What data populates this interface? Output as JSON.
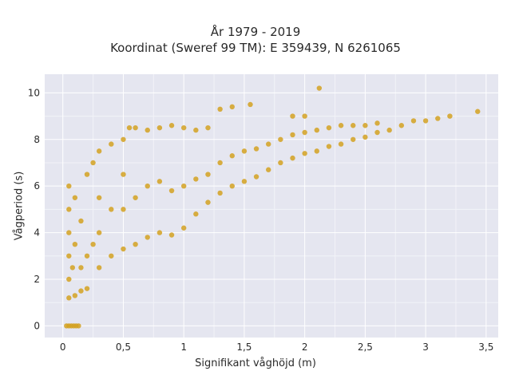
{
  "chart_data": {
    "type": "scatter",
    "title_line1": "År 1979 - 2019",
    "title_line2": "Koordinat (Sweref 99 TM): E 359439, N 6261065",
    "xlabel": "Signifikant våghöjd (m)",
    "ylabel": "Vågperiod (s)",
    "xlim": [
      -0.15,
      3.6
    ],
    "ylim": [
      -0.5,
      10.8
    ],
    "x_ticks": [
      0,
      0.5,
      1,
      1.5,
      2,
      2.5,
      3,
      3.5
    ],
    "x_tick_labels": [
      "0",
      "0,5",
      "1",
      "1,5",
      "2",
      "2,5",
      "3",
      "3,5"
    ],
    "y_ticks": [
      0,
      2,
      4,
      6,
      8,
      10
    ],
    "y_tick_labels": [
      "0",
      "2",
      "4",
      "6",
      "8",
      "10"
    ],
    "grid": true,
    "marker_color": "#d4a121",
    "plot_bg": "#e5e6f0",
    "series": [
      {
        "points": [
          [
            0.03,
            0.0
          ],
          [
            0.05,
            0.0
          ],
          [
            0.07,
            0.0
          ],
          [
            0.09,
            0.0
          ],
          [
            0.11,
            0.0
          ],
          [
            0.13,
            0.0
          ],
          [
            0.05,
            1.2
          ],
          [
            0.1,
            1.3
          ],
          [
            0.15,
            1.5
          ],
          [
            0.2,
            1.6
          ],
          [
            0.05,
            2.0
          ],
          [
            0.08,
            2.5
          ],
          [
            0.05,
            3.0
          ],
          [
            0.05,
            4.0
          ],
          [
            0.05,
            5.0
          ],
          [
            0.05,
            6.0
          ],
          [
            0.1,
            3.5
          ],
          [
            0.1,
            5.5
          ],
          [
            0.15,
            2.5
          ],
          [
            0.15,
            4.5
          ],
          [
            0.2,
            3.0
          ],
          [
            0.2,
            6.5
          ],
          [
            0.25,
            3.5
          ],
          [
            0.25,
            7.0
          ],
          [
            0.3,
            2.5
          ],
          [
            0.3,
            4.0
          ],
          [
            0.3,
            5.5
          ],
          [
            0.3,
            7.5
          ],
          [
            0.4,
            3.0
          ],
          [
            0.4,
            5.0
          ],
          [
            0.4,
            7.8
          ],
          [
            0.5,
            3.3
          ],
          [
            0.5,
            5.0
          ],
          [
            0.5,
            6.5
          ],
          [
            0.5,
            8.0
          ],
          [
            0.55,
            8.5
          ],
          [
            0.6,
            3.5
          ],
          [
            0.6,
            5.5
          ],
          [
            0.6,
            8.5
          ],
          [
            0.7,
            3.8
          ],
          [
            0.7,
            6.0
          ],
          [
            0.7,
            8.4
          ],
          [
            0.8,
            4.0
          ],
          [
            0.8,
            6.2
          ],
          [
            0.8,
            8.5
          ],
          [
            0.9,
            3.9
          ],
          [
            0.9,
            5.8
          ],
          [
            0.9,
            8.6
          ],
          [
            1.0,
            4.2
          ],
          [
            1.0,
            6.0
          ],
          [
            1.0,
            8.5
          ],
          [
            1.1,
            4.8
          ],
          [
            1.1,
            6.3
          ],
          [
            1.1,
            8.4
          ],
          [
            1.2,
            5.3
          ],
          [
            1.2,
            6.5
          ],
          [
            1.2,
            8.5
          ],
          [
            1.3,
            5.7
          ],
          [
            1.3,
            7.0
          ],
          [
            1.3,
            9.3
          ],
          [
            1.4,
            6.0
          ],
          [
            1.4,
            7.3
          ],
          [
            1.4,
            9.4
          ],
          [
            1.5,
            6.2
          ],
          [
            1.5,
            7.5
          ],
          [
            1.55,
            9.5
          ],
          [
            1.6,
            6.4
          ],
          [
            1.6,
            7.6
          ],
          [
            1.7,
            6.7
          ],
          [
            1.7,
            7.8
          ],
          [
            1.8,
            7.0
          ],
          [
            1.8,
            8.0
          ],
          [
            1.9,
            7.2
          ],
          [
            1.9,
            8.2
          ],
          [
            1.9,
            9.0
          ],
          [
            2.0,
            7.4
          ],
          [
            2.0,
            8.3
          ],
          [
            2.0,
            9.0
          ],
          [
            2.1,
            7.5
          ],
          [
            2.1,
            8.4
          ],
          [
            2.12,
            10.2
          ],
          [
            2.2,
            7.7
          ],
          [
            2.2,
            8.5
          ],
          [
            2.3,
            7.8
          ],
          [
            2.3,
            8.6
          ],
          [
            2.4,
            8.0
          ],
          [
            2.4,
            8.6
          ],
          [
            2.5,
            8.1
          ],
          [
            2.5,
            8.6
          ],
          [
            2.6,
            8.3
          ],
          [
            2.6,
            8.7
          ],
          [
            2.7,
            8.4
          ],
          [
            2.8,
            8.6
          ],
          [
            2.9,
            8.8
          ],
          [
            3.0,
            8.8
          ],
          [
            3.1,
            8.9
          ],
          [
            3.2,
            9.0
          ],
          [
            3.43,
            9.2
          ]
        ]
      }
    ]
  }
}
